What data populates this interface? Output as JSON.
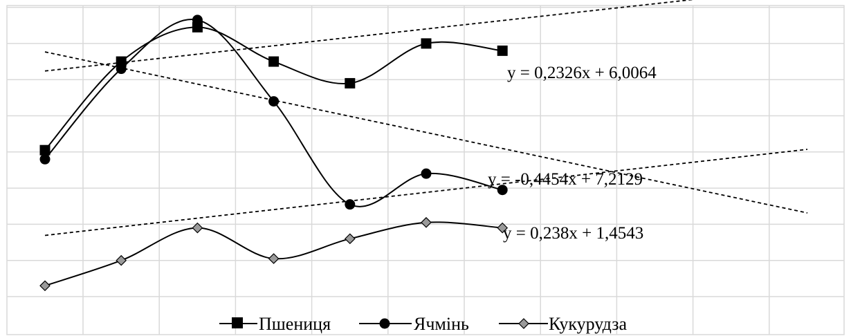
{
  "chart_data": {
    "type": "line",
    "title": "",
    "xlabel": "",
    "ylabel": "",
    "x": [
      1,
      2,
      3,
      4,
      5,
      6,
      7
    ],
    "xlim": [
      0.5,
      11.5
    ],
    "ylim": [
      0,
      8.5
    ],
    "grid": true,
    "legend_position": "bottom",
    "series": [
      {
        "name": "Пшениця",
        "marker": "square",
        "values": [
          4.05,
          6.5,
          7.45,
          6.5,
          5.9,
          7.0,
          6.8
        ],
        "trendline": {
          "slope": 0.2326,
          "intercept": 6.0064,
          "equation": "y = 0,2326x + 6,0064"
        }
      },
      {
        "name": "Ячмінь",
        "marker": "circle",
        "values": [
          3.8,
          6.3,
          7.65,
          5.4,
          2.55,
          3.4,
          2.95
        ],
        "trendline": {
          "slope": -0.4454,
          "intercept": 7.2129,
          "equation": "y = -0,4454x + 7,2129"
        }
      },
      {
        "name": "Кукурудза",
        "marker": "diamond",
        "values": [
          0.3,
          1.0,
          1.9,
          1.05,
          1.6,
          2.05,
          1.9
        ],
        "trendline": {
          "slope": 0.238,
          "intercept": 1.4543,
          "equation": "y = 0,238x + 1,4543"
        }
      }
    ]
  }
}
